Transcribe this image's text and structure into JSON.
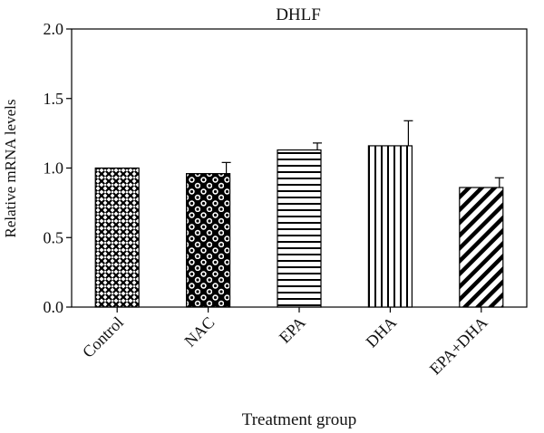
{
  "chart_data": {
    "type": "bar",
    "title": "DHLF",
    "xlabel": "Treatment group",
    "ylabel": "Relative mRNA levels",
    "categories": [
      "Control",
      "NAC",
      "EPA",
      "DHA",
      "EPA+DHA"
    ],
    "values": [
      1.0,
      0.96,
      1.13,
      1.16,
      0.86
    ],
    "errors": [
      0.0,
      0.08,
      0.05,
      0.18,
      0.07
    ],
    "patterns": [
      "crosshatch-dots",
      "circles",
      "horizontal-stripes",
      "vertical-stripes",
      "diagonal-stripes"
    ],
    "ylim": [
      0.0,
      2.0
    ],
    "yticks": [
      "0.0",
      "0.5",
      "1.0",
      "1.5",
      "2.0"
    ],
    "ytick_values": [
      0,
      0.5,
      1.0,
      1.5,
      2.0
    ],
    "grid": false,
    "legend": "none",
    "bar_color": "#000000",
    "background": "#ffffff"
  }
}
